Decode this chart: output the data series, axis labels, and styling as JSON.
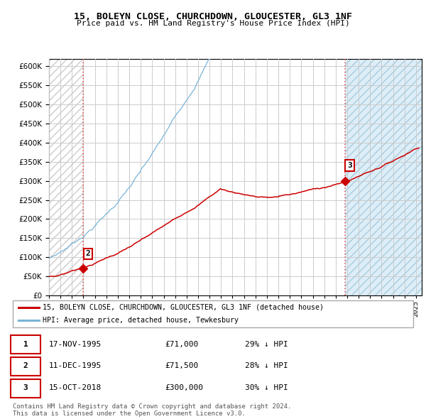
{
  "title": "15, BOLEYN CLOSE, CHURCHDOWN, GLOUCESTER, GL3 1NF",
  "subtitle": "Price paid vs. HM Land Registry's House Price Index (HPI)",
  "ylim": [
    0,
    620000
  ],
  "yticks": [
    0,
    50000,
    100000,
    150000,
    200000,
    250000,
    300000,
    350000,
    400000,
    450000,
    500000,
    550000,
    600000
  ],
  "xlim_start": 1993.0,
  "xlim_end": 2025.5,
  "hpi_color": "#7ab4d8",
  "price_color": "#cc0000",
  "sale_marker_color": "#cc0000",
  "background_color": "#ffffff",
  "grid_color": "#cccccc",
  "vline_color": "#dd4444",
  "sale_points": [
    {
      "label": "2",
      "date_num": 1995.96,
      "price": 71500
    },
    {
      "label": "3",
      "date_num": 2018.79,
      "price": 300000
    }
  ],
  "legend_entry1": "15, BOLEYN CLOSE, CHURCHDOWN, GLOUCESTER, GL3 1NF (detached house)",
  "legend_entry2": "HPI: Average price, detached house, Tewkesbury",
  "table_rows": [
    {
      "num": "1",
      "date": "17-NOV-1995",
      "price": "£71,000",
      "hpi": "29% ↓ HPI"
    },
    {
      "num": "2",
      "date": "11-DEC-1995",
      "price": "£71,500",
      "hpi": "28% ↓ HPI"
    },
    {
      "num": "3",
      "date": "15-OCT-2018",
      "price": "£300,000",
      "hpi": "30% ↓ HPI"
    }
  ],
  "footer": "Contains HM Land Registry data © Crown copyright and database right 2024.\nThis data is licensed under the Open Government Licence v3.0."
}
